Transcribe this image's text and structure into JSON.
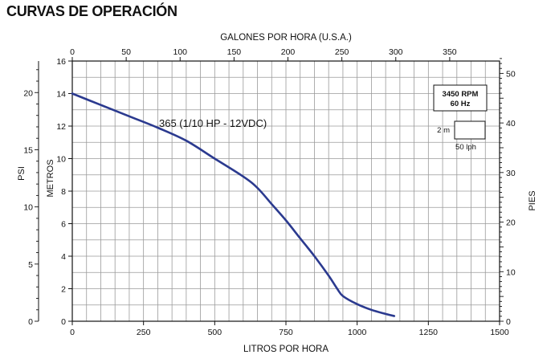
{
  "page_title": "CURVAS DE OPERACIÓN",
  "chart_data": {
    "type": "line",
    "title": "CURVAS DE OPERACIÓN",
    "xlabel": "LITROS POR HORA",
    "x2label": "GALONES POR HORA (U.S.A.)",
    "ylabel": "METROS",
    "y2label_left": "PSI",
    "y2label_right": "PIES",
    "xlim": [
      0,
      1500
    ],
    "ylim": [
      0,
      16
    ],
    "x_ticks": [
      0,
      250,
      500,
      750,
      1000,
      1250,
      1500
    ],
    "x2_ticks": [
      0,
      50,
      100,
      150,
      200,
      250,
      300,
      350
    ],
    "y_ticks": [
      0,
      2,
      4,
      6,
      8,
      10,
      12,
      14,
      16
    ],
    "psi_ticks": [
      0,
      5,
      10,
      15,
      20
    ],
    "pies_ticks": [
      0,
      10,
      20,
      30,
      40,
      50
    ],
    "grid": true,
    "series": [
      {
        "name": "365 (1/10 HP - 12VDC)",
        "x": [
          0,
          100,
          200,
          300,
          400,
          500,
          600,
          650,
          700,
          750,
          800,
          850,
          900,
          930,
          950,
          1000,
          1050,
          1100,
          1130
        ],
        "y": [
          14.0,
          13.3,
          12.6,
          11.9,
          11.1,
          10.0,
          8.9,
          8.2,
          7.2,
          6.2,
          5.1,
          4.0,
          2.8,
          2.0,
          1.55,
          1.05,
          0.7,
          0.45,
          0.32
        ],
        "color": "#2b3a8f"
      }
    ],
    "annotations": {
      "curve_label": "365 (1/10 HP - 12VDC)",
      "speed_box": [
        "3450 RPM",
        "60 Hz"
      ],
      "scale_box": {
        "vertical": "2 m",
        "horizontal": "50 lph"
      }
    }
  }
}
